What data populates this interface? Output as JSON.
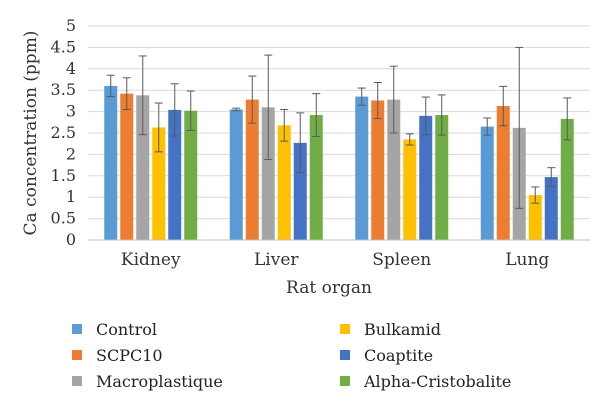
{
  "chart_data": {
    "type": "bar",
    "title": "",
    "xlabel": "Rat organ",
    "ylabel": "Ca concentration (ppm)",
    "ylim": [
      0,
      5
    ],
    "yticks": [
      "0",
      "0.5",
      "1",
      "1.5",
      "2",
      "2.5",
      "3",
      "3.5",
      "4",
      "4.5",
      "5"
    ],
    "grid": true,
    "legend_position": "bottom",
    "categories": [
      "Kidney",
      "Liver",
      "Spleen",
      "Lung"
    ],
    "series": [
      {
        "name": "Control",
        "color": "#5B9BD5",
        "values": [
          3.6,
          3.05,
          3.35,
          2.65
        ],
        "errors": [
          0.25,
          0.03,
          0.2,
          0.2
        ]
      },
      {
        "name": "SCPC10",
        "color": "#ED7D31",
        "values": [
          3.42,
          3.28,
          3.26,
          3.13
        ],
        "errors": [
          0.37,
          0.55,
          0.42,
          0.46
        ]
      },
      {
        "name": "Macroplastique",
        "color": "#A5A5A5",
        "values": [
          3.38,
          3.1,
          3.28,
          2.62
        ],
        "errors": [
          0.92,
          1.22,
          0.78,
          1.88
        ]
      },
      {
        "name": "Bulkamid",
        "color": "#FFC000",
        "values": [
          2.63,
          2.68,
          2.35,
          1.05
        ],
        "errors": [
          0.57,
          0.37,
          0.13,
          0.19
        ]
      },
      {
        "name": "Coaptite",
        "color": "#4472C4",
        "values": [
          3.04,
          2.27,
          2.9,
          1.47
        ],
        "errors": [
          0.61,
          0.7,
          0.44,
          0.22
        ]
      },
      {
        "name": "Alpha-Cristobalite",
        "color": "#70AD47",
        "values": [
          3.02,
          2.92,
          2.92,
          2.83
        ],
        "errors": [
          0.46,
          0.5,
          0.47,
          0.49
        ]
      }
    ]
  }
}
